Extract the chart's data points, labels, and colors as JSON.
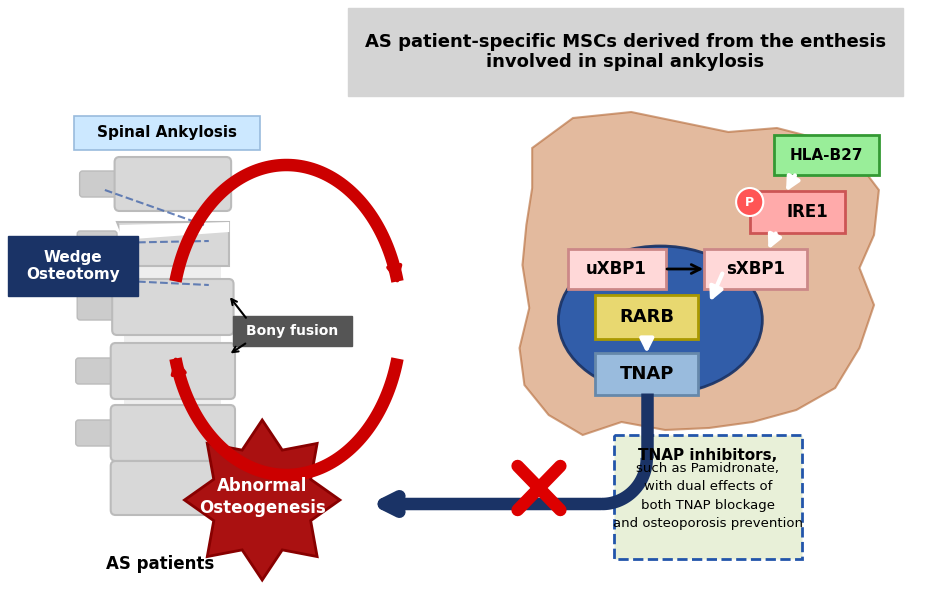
{
  "bg_color": "#ffffff",
  "title_box_color": "#d4d4d4",
  "title_text": "AS patient-specific MSCs derived from the enthesis\ninvolved in spinal ankylosis",
  "title_fontsize": 13,
  "cell_color": "#d4956a",
  "nucleus_color": "#2255aa",
  "spinal_ankylosis_label": "Spinal Ankylosis",
  "spinal_ankylosis_box_color": "#cce8ff",
  "wedge_label": "Wedge\nOsteotomy",
  "wedge_box_color": "#1a3366",
  "wedge_text_color": "#ffffff",
  "bony_fusion_label": "Bony fusion",
  "bony_fusion_box_color": "#555555",
  "bony_fusion_text_color": "#ffffff",
  "as_patients_label": "AS patients",
  "hla_label": "HLA-B27",
  "hla_box_color": "#99ee99",
  "ire1_label": "IRE1",
  "ire1_box_color": "#ffaaaa",
  "p_label": "P",
  "p_circle_color": "#ff5555",
  "uxbp1_label": "uXBP1",
  "uxbp1_box_color": "#ffd8d8",
  "sxbp1_label": "sXBP1",
  "sxbp1_box_color": "#ffd8d8",
  "rarb_label": "RARB",
  "rarb_box_color": "#e8d870",
  "tnap_label": "TNAP",
  "tnap_box_color": "#99bbdd",
  "abnormal_label": "Abnormal\nOsteogenesis",
  "abnormal_color": "#aa1111",
  "tnap_inhibitors_line1": "TNAP inhibitors,",
  "tnap_inhibitors_rest": "such as Pamidronate,\nwith dual effects of\nboth TNAP blockage\nand osteoporosis prevention",
  "tnap_inhibitors_box_color": "#e8f0d8",
  "tnap_inhibitors_border_color": "#2255aa",
  "red_arrow_color": "#cc0000",
  "dark_blue_color": "#1a3366",
  "spine_body_color": "#d8d8d8",
  "spine_edge_color": "#bbbbbb"
}
